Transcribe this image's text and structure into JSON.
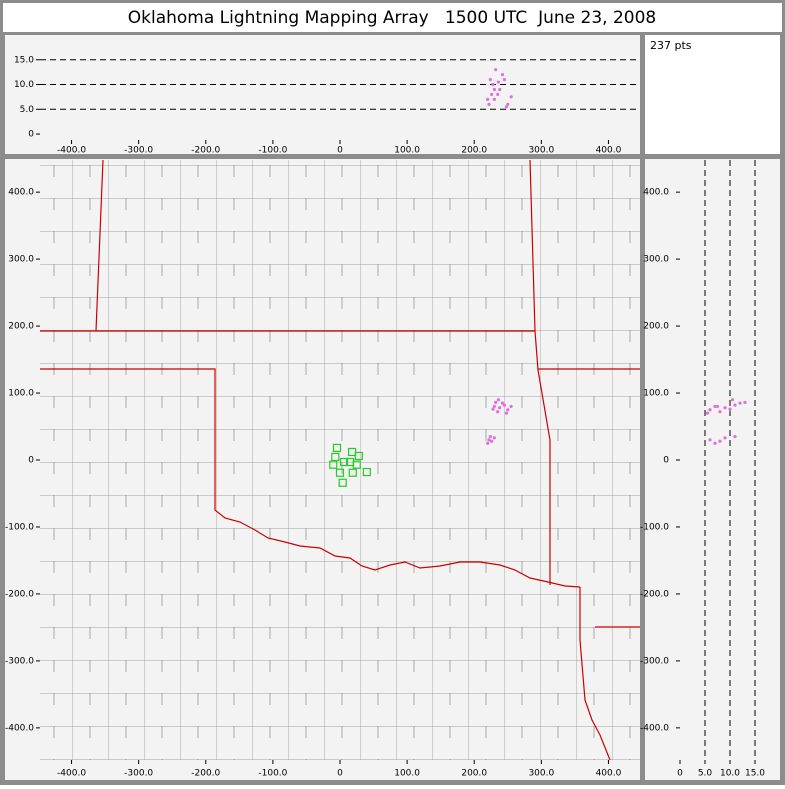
{
  "title": "Oklahoma Lightning Mapping Array   1500 UTC  June 23, 2008",
  "pts_label": "237 pts",
  "altitude_panel": {
    "xlim": [
      -447,
      447
    ],
    "ylim": [
      -1.2,
      20
    ],
    "xticks": [
      {
        "value": -400,
        "label": "-400.0"
      },
      {
        "value": -300,
        "label": "-300.0"
      },
      {
        "value": -200,
        "label": "-200.0"
      },
      {
        "value": -100,
        "label": "-100.0"
      },
      0,
      {
        "value": 100,
        "label": "100.0"
      },
      {
        "value": 200,
        "label": "200.0"
      },
      {
        "value": 300,
        "label": "300.0"
      },
      {
        "value": 400,
        "label": "400.0"
      }
    ],
    "yticks": [
      0,
      {
        "value": 5,
        "label": "5.0"
      },
      {
        "value": 10,
        "label": "10.0"
      },
      {
        "value": 15,
        "label": "15.0"
      }
    ]
  },
  "plan_view": {
    "xlim": [
      -447,
      447
    ],
    "ylim": [
      -448,
      448
    ],
    "xticks": [
      {
        "value": -400,
        "label": "-400.0"
      },
      {
        "value": -300,
        "label": "-300.0"
      },
      {
        "value": -200,
        "label": "-200.0"
      },
      {
        "value": -100,
        "label": "-100.0"
      },
      0,
      {
        "value": 100,
        "label": "100.0"
      },
      {
        "value": 200,
        "label": "200.0"
      },
      {
        "value": 300,
        "label": "300.0"
      },
      {
        "value": 400,
        "label": "400.0"
      }
    ],
    "yticks": [
      {
        "value": -400,
        "label": "-400.0"
      },
      {
        "value": -300,
        "label": "-300.0"
      },
      {
        "value": -200,
        "label": "-200.0"
      },
      {
        "value": -100,
        "label": "-100.0"
      },
      0,
      {
        "value": 100,
        "label": "100.0"
      },
      {
        "value": 200,
        "label": "200.0"
      },
      {
        "value": 300,
        "label": "300.0"
      },
      {
        "value": 400,
        "label": "400.0"
      }
    ]
  },
  "altitude_profile": {
    "xlim": [
      -7,
      20
    ],
    "ylim": [
      -448,
      448
    ],
    "xticks": [
      0,
      {
        "value": 5,
        "label": "5.0"
      },
      {
        "value": 10,
        "label": "10.0"
      },
      {
        "value": 15,
        "label": "15.0"
      }
    ],
    "yticks": [
      {
        "value": -400,
        "label": "-400.0"
      },
      {
        "value": -300,
        "label": "-300.0"
      },
      {
        "value": -200,
        "label": "-200.0"
      },
      {
        "value": -100,
        "label": "-100.0"
      },
      0,
      {
        "value": 100,
        "label": "100.0"
      },
      {
        "value": 200,
        "label": "200.0"
      },
      {
        "value": 300,
        "label": "300.0"
      },
      {
        "value": 400,
        "label": "400.0"
      }
    ]
  },
  "stations": {
    "color": "#22cc22",
    "x": [
      -4.5,
      -7,
      6,
      18,
      28,
      -10,
      25,
      40,
      0,
      19,
      4,
      15
    ],
    "y": [
      18,
      4.5,
      -3,
      12,
      6,
      -7,
      -7,
      -18,
      -19,
      -19,
      -34,
      -3
    ]
  },
  "sources": {
    "color": "#e070e0",
    "x": [
      230,
      238,
      245,
      250,
      235,
      242,
      255,
      228,
      222,
      226,
      230,
      220,
      232,
      248,
      236,
      224
    ],
    "y": [
      80,
      78,
      82,
      75,
      72,
      85,
      80,
      76,
      30,
      28,
      33,
      25,
      86,
      70,
      90,
      35
    ],
    "z": [
      7,
      9,
      11,
      6,
      8,
      12,
      7.5,
      10,
      6,
      8,
      9,
      7,
      13,
      5.5,
      10.5,
      11
    ]
  }
}
